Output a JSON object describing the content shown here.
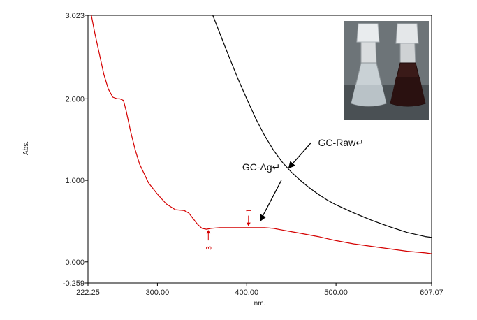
{
  "chart_data": {
    "type": "line",
    "xlabel": "nm.",
    "ylabel": "Abs.",
    "xlim": [
      222.25,
      607.07
    ],
    "ylim": [
      -0.259,
      3.023
    ],
    "x_ticks": [
      {
        "value": 222.25,
        "label": "222.25"
      },
      {
        "value": 300,
        "label": "300.00"
      },
      {
        "value": 400,
        "label": "400.00"
      },
      {
        "value": 500,
        "label": "500.00"
      },
      {
        "value": 607.07,
        "label": "607.07"
      }
    ],
    "y_ticks": [
      {
        "value": 3.023,
        "label": "3.023"
      },
      {
        "value": 2.0,
        "label": "2.000"
      },
      {
        "value": 1.0,
        "label": "1.000"
      },
      {
        "value": 0.0,
        "label": "0.000"
      },
      {
        "value": -0.259,
        "label": "-0.259"
      }
    ],
    "series": [
      {
        "name": "GC-Raw",
        "color": "#000000",
        "x": [
          362,
          370,
          380,
          390,
          400,
          410,
          420,
          430,
          440,
          450,
          460,
          470,
          480,
          490,
          500,
          520,
          540,
          560,
          580,
          600,
          607
        ],
        "y": [
          3.023,
          2.8,
          2.52,
          2.25,
          2.0,
          1.76,
          1.55,
          1.37,
          1.22,
          1.1,
          1.0,
          0.91,
          0.83,
          0.76,
          0.7,
          0.6,
          0.51,
          0.43,
          0.36,
          0.31,
          0.3
        ]
      },
      {
        "name": "GC-Ag",
        "color": "#d40000",
        "x": [
          226,
          230,
          235,
          240,
          245,
          250,
          255,
          258,
          262,
          265,
          270,
          275,
          280,
          290,
          300,
          310,
          320,
          330,
          335,
          340,
          345,
          350,
          355,
          360,
          370,
          380,
          390,
          400,
          410,
          420,
          430,
          440,
          450,
          460,
          480,
          500,
          520,
          540,
          560,
          580,
          600,
          607
        ],
        "y": [
          3.023,
          2.8,
          2.55,
          2.3,
          2.12,
          2.02,
          2.0,
          2.0,
          1.98,
          1.85,
          1.6,
          1.38,
          1.2,
          0.97,
          0.83,
          0.71,
          0.64,
          0.63,
          0.6,
          0.53,
          0.46,
          0.41,
          0.4,
          0.41,
          0.42,
          0.42,
          0.42,
          0.42,
          0.42,
          0.42,
          0.41,
          0.39,
          0.37,
          0.35,
          0.31,
          0.26,
          0.22,
          0.19,
          0.16,
          0.13,
          0.11,
          0.1
        ]
      }
    ],
    "annotations": [
      {
        "text": "GC-Raw↵",
        "x": 480,
        "y": 1.42,
        "arrow_to_x": 447,
        "arrow_to_y": 1.15
      },
      {
        "text": "GC-Ag↵",
        "x": 395,
        "y": 1.12,
        "arrow_to_x": 415,
        "arrow_to_y": 0.5
      }
    ],
    "peak_markers": [
      {
        "label": "1",
        "x": 402,
        "y": 0.43,
        "side": "top"
      },
      {
        "label": "3",
        "x": 357,
        "y": 0.4,
        "side": "bottom"
      }
    ]
  },
  "inset": {
    "name": "flask-photo",
    "left_liquid_color": "#b9c2c7",
    "right_liquid_color": "#2a1110",
    "background_color": "#6d7478"
  }
}
